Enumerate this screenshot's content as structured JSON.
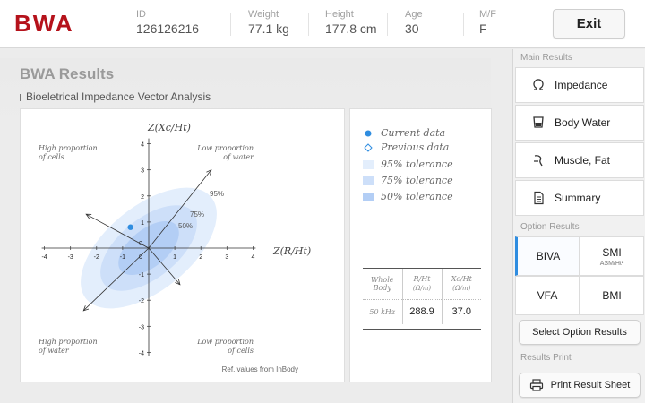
{
  "app": {
    "logo_text": "BWA",
    "brand_color": "#b5121b",
    "accent_color": "#2f8de0"
  },
  "header": {
    "fields": [
      {
        "label": "ID",
        "value": "126126216"
      },
      {
        "label": "Weight",
        "value": "77.1 kg"
      },
      {
        "label": "Height",
        "value": "177.8 cm"
      },
      {
        "label": "Age",
        "value": "30"
      },
      {
        "label": "M/F",
        "value": "F"
      }
    ],
    "exit_label": "Exit"
  },
  "main": {
    "title": "BWA Results",
    "subtitle": "Bioeletrical Impedance Vector Analysis"
  },
  "chart": {
    "y_axis_label": "Z(Xc/Ht)",
    "x_axis_label": "Z(R/Ht)",
    "quadrants": {
      "top_left": [
        "High proportion",
        "of cells"
      ],
      "top_right": [
        "Low proportion",
        "of water"
      ],
      "bottom_left": [
        "High proportion",
        "of water"
      ],
      "bottom_right": [
        "Low proportion",
        "of cells"
      ]
    },
    "ellipse_labels": [
      "95%",
      "75%",
      "50%"
    ],
    "ref_note": "Ref. values from InBody",
    "x_ticks": [
      "-4",
      "-3",
      "-2",
      "-1",
      "0",
      "1",
      "2",
      "3",
      "4"
    ],
    "y_ticks": [
      "4",
      "3",
      "2",
      "1",
      "0",
      "-1",
      "-2",
      "-3",
      "-4"
    ],
    "current_point": {
      "x": -0.7,
      "y": 0.8
    },
    "colors": {
      "e95": "#e3eefc",
      "e75": "#cddff9",
      "e50": "#b3cef5",
      "point": "#2f8de0"
    }
  },
  "legend": {
    "items": [
      {
        "label": "Current data",
        "icon": "filled-dot-icon"
      },
      {
        "label": "Previous data",
        "icon": "hollow-diamond-icon"
      },
      {
        "label": "95% tolerance",
        "swatch": "#e3eefc"
      },
      {
        "label": "75% tolerance",
        "swatch": "#cddff9"
      },
      {
        "label": "50% tolerance",
        "swatch": "#b3cef5"
      }
    ],
    "table": {
      "head": {
        "c0": "Whole Body",
        "c1": "R/Ht",
        "c1u": "(Ω/m)",
        "c2": "Xc/Ht",
        "c2u": "(Ω/m)"
      },
      "row": {
        "freq": "50 kHz",
        "r": "288.9",
        "xc": "37.0"
      }
    }
  },
  "sidebar": {
    "main_results_header": "Main Results",
    "main_items": [
      {
        "label": "Impedance",
        "icon": "omega-icon"
      },
      {
        "label": "Body Water",
        "icon": "cup-icon"
      },
      {
        "label": "Muscle, Fat",
        "icon": "body-icon"
      },
      {
        "label": "Summary",
        "icon": "document-icon"
      }
    ],
    "option_results_header": "Option Results",
    "options": [
      {
        "label": "BIVA",
        "sub": ""
      },
      {
        "label": "SMI",
        "sub": "ASM/Ht²"
      },
      {
        "label": "VFA",
        "sub": ""
      },
      {
        "label": "BMI",
        "sub": ""
      }
    ],
    "select_option_label": "Select Option Results",
    "results_print_header": "Results Print",
    "print_label": "Print Result Sheet"
  }
}
